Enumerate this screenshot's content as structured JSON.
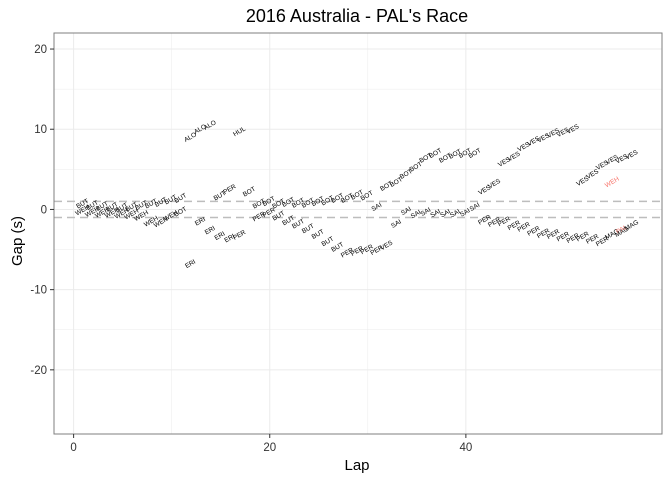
{
  "chart_data": {
    "type": "scatter",
    "title": "2016 Australia - PAL's Race",
    "xlabel": "Lap",
    "ylabel": "Gap (s)",
    "xlim": [
      -2,
      60
    ],
    "ylim": [
      -28,
      22
    ],
    "xticks": [
      0,
      20,
      40
    ],
    "yticks": [
      -20,
      -10,
      0,
      10,
      20
    ],
    "grid": true,
    "reference_lines": [
      1,
      -1
    ],
    "colors": {
      "default": "#000000",
      "highlight": "#F8766D",
      "refline": "#bdbdbd",
      "grid": "#ebebeb",
      "panel_border": "#7f7f7f"
    },
    "points": [
      {
        "lap": 1,
        "gap": 0.5,
        "label": "BUT"
      },
      {
        "lap": 1,
        "gap": -0.3,
        "label": "WEH"
      },
      {
        "lap": 2,
        "gap": 0.3,
        "label": "BUT"
      },
      {
        "lap": 2,
        "gap": -0.5,
        "label": "WEH"
      },
      {
        "lap": 3,
        "gap": 0.2,
        "label": "BUT"
      },
      {
        "lap": 3,
        "gap": -0.6,
        "label": "WEH"
      },
      {
        "lap": 4,
        "gap": 0.1,
        "label": "BUT"
      },
      {
        "lap": 4,
        "gap": -0.6,
        "label": "WEH"
      },
      {
        "lap": 5,
        "gap": 0.0,
        "label": "BUT"
      },
      {
        "lap": 5,
        "gap": -0.7,
        "label": "WEH"
      },
      {
        "lap": 6,
        "gap": 0.1,
        "label": "BUT"
      },
      {
        "lap": 6,
        "gap": -0.8,
        "label": "WEH"
      },
      {
        "lap": 7,
        "gap": 0.3,
        "label": "BUT"
      },
      {
        "lap": 7,
        "gap": -1.0,
        "label": "WEH"
      },
      {
        "lap": 8,
        "gap": 0.5,
        "label": "BUT"
      },
      {
        "lap": 8,
        "gap": -1.7,
        "label": "WEH"
      },
      {
        "lap": 9,
        "gap": 0.7,
        "label": "BUT"
      },
      {
        "lap": 9,
        "gap": -1.8,
        "label": "WEH"
      },
      {
        "lap": 10,
        "gap": 1.0,
        "label": "BUT"
      },
      {
        "lap": 10,
        "gap": -1.0,
        "label": "WEH"
      },
      {
        "lap": 11,
        "gap": 1.2,
        "label": "BUT"
      },
      {
        "lap": 11,
        "gap": -0.5,
        "label": "BOT"
      },
      {
        "lap": 12,
        "gap": 8.8,
        "label": "ALO"
      },
      {
        "lap": 12,
        "gap": -7.0,
        "label": "ERI"
      },
      {
        "lap": 13,
        "gap": 9.8,
        "label": "ALO"
      },
      {
        "lap": 13,
        "gap": -1.7,
        "label": "ERI"
      },
      {
        "lap": 14,
        "gap": 10.3,
        "label": "ALO"
      },
      {
        "lap": 14,
        "gap": -2.8,
        "label": "ERI"
      },
      {
        "lap": 15,
        "gap": 1.5,
        "label": "BUT"
      },
      {
        "lap": 15,
        "gap": -3.5,
        "label": "ERI"
      },
      {
        "lap": 16,
        "gap": 2.3,
        "label": "PER"
      },
      {
        "lap": 16,
        "gap": -3.8,
        "label": "ERI"
      },
      {
        "lap": 17,
        "gap": 9.5,
        "label": "HUL"
      },
      {
        "lap": 17,
        "gap": -3.4,
        "label": "PER"
      },
      {
        "lap": 18,
        "gap": 2.0,
        "label": "BOT"
      },
      {
        "lap": 19,
        "gap": -1.1,
        "label": "PER"
      },
      {
        "lap": 19,
        "gap": 0.5,
        "label": "BOT"
      },
      {
        "lap": 20,
        "gap": 0.8,
        "label": "BOT"
      },
      {
        "lap": 20,
        "gap": -0.6,
        "label": "PER"
      },
      {
        "lap": 21,
        "gap": 0.5,
        "label": "BOT"
      },
      {
        "lap": 21,
        "gap": -1.0,
        "label": "BUT"
      },
      {
        "lap": 22,
        "gap": 0.7,
        "label": "BOT"
      },
      {
        "lap": 22,
        "gap": -1.6,
        "label": "BUT"
      },
      {
        "lap": 23,
        "gap": 0.6,
        "label": "BOT"
      },
      {
        "lap": 23,
        "gap": -2.0,
        "label": "BUT"
      },
      {
        "lap": 24,
        "gap": 0.6,
        "label": "BOT"
      },
      {
        "lap": 24,
        "gap": -2.6,
        "label": "BUT"
      },
      {
        "lap": 25,
        "gap": 0.8,
        "label": "BOT"
      },
      {
        "lap": 25,
        "gap": -3.3,
        "label": "BUT"
      },
      {
        "lap": 26,
        "gap": 0.9,
        "label": "BOT"
      },
      {
        "lap": 26,
        "gap": -4.2,
        "label": "BUT"
      },
      {
        "lap": 27,
        "gap": 1.2,
        "label": "BOT"
      },
      {
        "lap": 27,
        "gap": -4.9,
        "label": "BUT"
      },
      {
        "lap": 28,
        "gap": 1.2,
        "label": "BOT"
      },
      {
        "lap": 28,
        "gap": -5.6,
        "label": "PER"
      },
      {
        "lap": 29,
        "gap": 1.6,
        "label": "BOT"
      },
      {
        "lap": 29,
        "gap": -5.4,
        "label": "PER"
      },
      {
        "lap": 30,
        "gap": 1.5,
        "label": "BOT"
      },
      {
        "lap": 30,
        "gap": -5.2,
        "label": "PER"
      },
      {
        "lap": 31,
        "gap": 0.1,
        "label": "SAI"
      },
      {
        "lap": 31,
        "gap": -5.3,
        "label": "PER"
      },
      {
        "lap": 32,
        "gap": 2.7,
        "label": "BOT"
      },
      {
        "lap": 32,
        "gap": -4.7,
        "label": "VES"
      },
      {
        "lap": 33,
        "gap": 3.2,
        "label": "BOT"
      },
      {
        "lap": 33,
        "gap": -2.0,
        "label": "SAI"
      },
      {
        "lap": 34,
        "gap": 4.2,
        "label": "BOT"
      },
      {
        "lap": 34,
        "gap": -0.4,
        "label": "SAI"
      },
      {
        "lap": 35,
        "gap": 5.1,
        "label": "BOT"
      },
      {
        "lap": 35,
        "gap": -0.8,
        "label": "SAI"
      },
      {
        "lap": 36,
        "gap": 6.2,
        "label": "BOT"
      },
      {
        "lap": 36,
        "gap": -0.5,
        "label": "SAI"
      },
      {
        "lap": 37,
        "gap": 6.8,
        "label": "BOT"
      },
      {
        "lap": 37,
        "gap": -0.7,
        "label": "SAI"
      },
      {
        "lap": 38,
        "gap": 6.2,
        "label": "BOT"
      },
      {
        "lap": 38,
        "gap": -0.7,
        "label": "SAI"
      },
      {
        "lap": 39,
        "gap": 6.7,
        "label": "BOT"
      },
      {
        "lap": 39,
        "gap": -0.7,
        "label": "SAI"
      },
      {
        "lap": 40,
        "gap": 6.8,
        "label": "BOT"
      },
      {
        "lap": 40,
        "gap": -0.6,
        "label": "SAI"
      },
      {
        "lap": 41,
        "gap": 6.8,
        "label": "BOT"
      },
      {
        "lap": 41,
        "gap": 0.1,
        "label": "SAI"
      },
      {
        "lap": 42,
        "gap": 2.2,
        "label": "VES"
      },
      {
        "lap": 42,
        "gap": -1.5,
        "label": "PER"
      },
      {
        "lap": 43,
        "gap": 3.0,
        "label": "VES"
      },
      {
        "lap": 43,
        "gap": -1.8,
        "label": "PER"
      },
      {
        "lap": 44,
        "gap": 5.7,
        "label": "VES"
      },
      {
        "lap": 44,
        "gap": -1.7,
        "label": "PER"
      },
      {
        "lap": 45,
        "gap": 6.4,
        "label": "VES"
      },
      {
        "lap": 45,
        "gap": -2.2,
        "label": "PER"
      },
      {
        "lap": 46,
        "gap": 7.6,
        "label": "VES"
      },
      {
        "lap": 46,
        "gap": -2.4,
        "label": "PER"
      },
      {
        "lap": 47,
        "gap": 8.3,
        "label": "VES"
      },
      {
        "lap": 47,
        "gap": -2.9,
        "label": "PER"
      },
      {
        "lap": 48,
        "gap": 8.7,
        "label": "VES"
      },
      {
        "lap": 48,
        "gap": -3.2,
        "label": "PER"
      },
      {
        "lap": 49,
        "gap": 9.3,
        "label": "VES"
      },
      {
        "lap": 49,
        "gap": -3.3,
        "label": "PER"
      },
      {
        "lap": 50,
        "gap": 9.4,
        "label": "VES"
      },
      {
        "lap": 50,
        "gap": -3.6,
        "label": "PER"
      },
      {
        "lap": 51,
        "gap": 9.8,
        "label": "VES"
      },
      {
        "lap": 51,
        "gap": -3.8,
        "label": "PER"
      },
      {
        "lap": 52,
        "gap": 3.3,
        "label": "VES"
      },
      {
        "lap": 52,
        "gap": -3.6,
        "label": "PER"
      },
      {
        "lap": 53,
        "gap": 4.2,
        "label": "VES"
      },
      {
        "lap": 53,
        "gap": -3.9,
        "label": "PER"
      },
      {
        "lap": 54,
        "gap": 5.3,
        "label": "VES"
      },
      {
        "lap": 54,
        "gap": -4.2,
        "label": "PER"
      },
      {
        "lap": 55,
        "gap": 6.0,
        "label": "VES"
      },
      {
        "lap": 55,
        "gap": 3.2,
        "label": "WEH",
        "highlight": true
      },
      {
        "lap": 55,
        "gap": -3.3,
        "label": "MAG"
      },
      {
        "lap": 56,
        "gap": 6.1,
        "label": "VES"
      },
      {
        "lap": 56,
        "gap": -2.7,
        "label": "PAL",
        "highlight": true
      },
      {
        "lap": 56,
        "gap": -3.0,
        "label": "MAG"
      },
      {
        "lap": 57,
        "gap": 6.6,
        "label": "VES"
      },
      {
        "lap": 57,
        "gap": -2.2,
        "label": "MAG"
      }
    ]
  }
}
